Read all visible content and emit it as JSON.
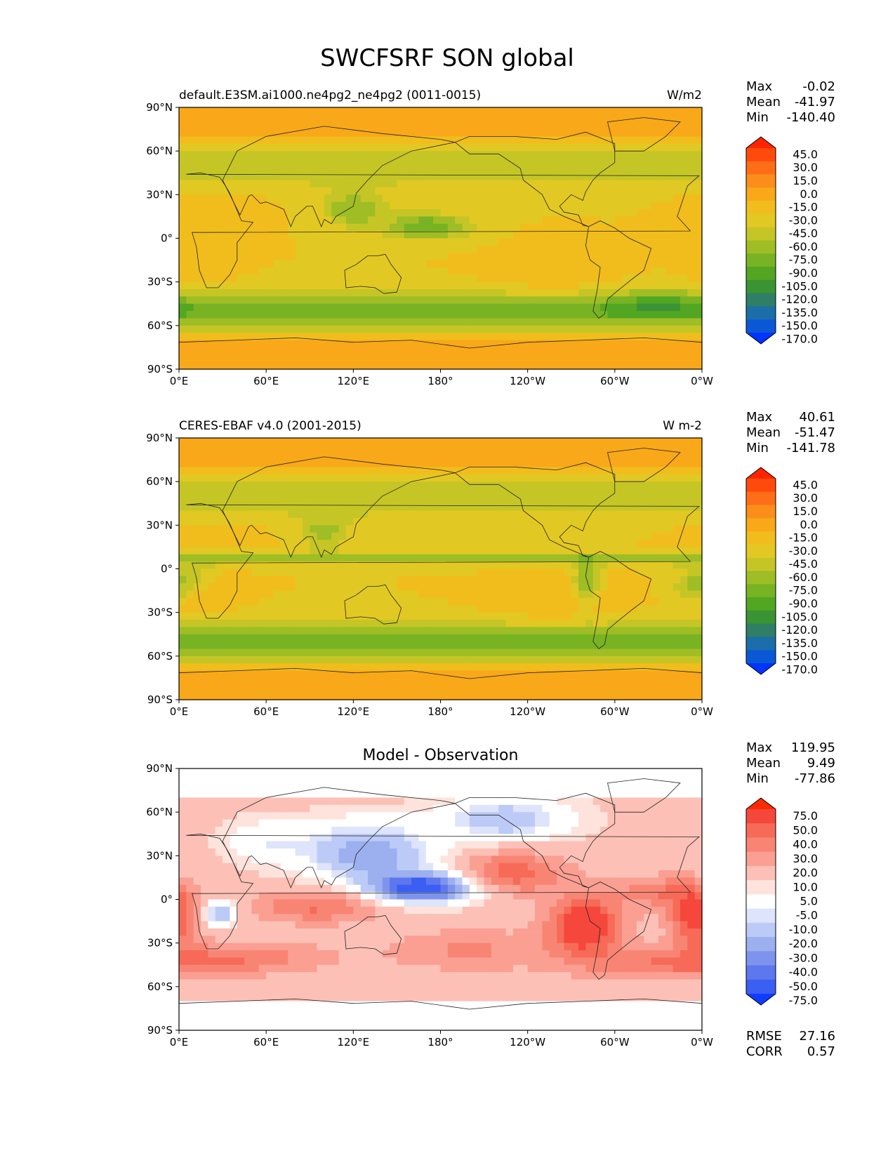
{
  "figure": {
    "title": "SWCFSRF SON global"
  },
  "panels": [
    {
      "id": "model",
      "title_left": "default.E3SM.ai1000.ne4pg2_ne4pg2 (0011-0015)",
      "title_center": "",
      "units": "W/m2",
      "stats": [
        {
          "label": "Max",
          "value": "-0.02"
        },
        {
          "label": "Mean",
          "value": "-41.97"
        },
        {
          "label": "Min",
          "value": "-140.40"
        }
      ],
      "colorbar": {
        "levels": [
          "45.0",
          "30.0",
          "15.0",
          "0.0",
          "-15.0",
          "-30.0",
          "-45.0",
          "-60.0",
          "-75.0",
          "-90.0",
          "-105.0",
          "-120.0",
          "-135.0",
          "-150.0",
          "-170.0"
        ],
        "colors": [
          "#ff2400",
          "#ff4a0c",
          "#ff6e16",
          "#fb8e1a",
          "#f8a818",
          "#f1bd1d",
          "#e2c823",
          "#c5c626",
          "#9fbd25",
          "#78b323",
          "#52a622",
          "#3b9433",
          "#2f7f67",
          "#1b6ea8",
          "#0b58d6",
          "#0034ff"
        ]
      },
      "field": "model"
    },
    {
      "id": "obs",
      "title_left": "CERES-EBAF v4.0 (2001-2015)",
      "title_center": "",
      "units": "W m-2",
      "stats": [
        {
          "label": "Max",
          "value": "40.61"
        },
        {
          "label": "Mean",
          "value": "-51.47"
        },
        {
          "label": "Min",
          "value": "-141.78"
        }
      ],
      "colorbar": {
        "levels": [
          "45.0",
          "30.0",
          "15.0",
          "0.0",
          "-15.0",
          "-30.0",
          "-45.0",
          "-60.0",
          "-75.0",
          "-90.0",
          "-105.0",
          "-120.0",
          "-135.0",
          "-150.0",
          "-170.0"
        ],
        "colors": [
          "#ff2400",
          "#ff4a0c",
          "#ff6e16",
          "#fb8e1a",
          "#f8a818",
          "#f1bd1d",
          "#e2c823",
          "#c5c626",
          "#9fbd25",
          "#78b323",
          "#52a622",
          "#3b9433",
          "#2f7f67",
          "#1b6ea8",
          "#0b58d6",
          "#0034ff"
        ]
      },
      "field": "obs"
    },
    {
      "id": "diff",
      "title_left": "",
      "title_center": "Model - Observation",
      "units": "",
      "stats": [
        {
          "label": "Max",
          "value": "119.95"
        },
        {
          "label": "Mean",
          "value": "9.49"
        },
        {
          "label": "Min",
          "value": "-77.86"
        }
      ],
      "extra_stats": [
        {
          "label": "RMSE",
          "value": "27.16"
        },
        {
          "label": "CORR",
          "value": "0.57"
        }
      ],
      "colorbar": {
        "levels": [
          "75.0",
          "50.0",
          "40.0",
          "30.0",
          "20.0",
          "10.0",
          "5.0",
          "-5.0",
          "-10.0",
          "-20.0",
          "-30.0",
          "-40.0",
          "-50.0",
          "-75.0"
        ],
        "colors": [
          "#ff2a00",
          "#f6473c",
          "#f76a58",
          "#f88574",
          "#fa9f92",
          "#fcc0b6",
          "#fde3dc",
          "#ffffff",
          "#dde4fb",
          "#bccaf7",
          "#9cafef",
          "#7e94ec",
          "#5d77ee",
          "#3b5ef3",
          "#0f3dff"
        ]
      },
      "field": "diff"
    }
  ],
  "axes": {
    "lat_ticks": [
      "90°N",
      "60°N",
      "30°N",
      "0°",
      "30°S",
      "60°S",
      "90°S"
    ],
    "lon_ticks": [
      "0°E",
      "60°E",
      "120°E",
      "180°",
      "120°W",
      "60°W",
      "0°W"
    ]
  },
  "chart_data": [
    {
      "type": "heatmap",
      "title": "default.E3SM.ai1000.ne4pg2_ne4pg2 (0011-0015)",
      "units": "W/m2",
      "x_range": [
        0,
        360
      ],
      "y_range": [
        -90,
        90
      ],
      "x_ticks": [
        "0°E",
        "60°E",
        "120°E",
        "180°",
        "120°W",
        "60°W",
        "0°W"
      ],
      "y_ticks": [
        "90°N",
        "60°N",
        "30°N",
        "0°",
        "30°S",
        "60°S",
        "90°S"
      ],
      "contour_levels": [
        -170,
        -150,
        -135,
        -120,
        -105,
        -90,
        -75,
        -60,
        -45,
        -30,
        -15,
        0,
        15,
        30,
        45
      ],
      "summary": {
        "max": -0.02,
        "mean": -41.97,
        "min": -140.4
      }
    },
    {
      "type": "heatmap",
      "title": "CERES-EBAF v4.0 (2001-2015)",
      "units": "W m-2",
      "x_range": [
        0,
        360
      ],
      "y_range": [
        -90,
        90
      ],
      "x_ticks": [
        "0°E",
        "60°E",
        "120°E",
        "180°",
        "120°W",
        "60°W",
        "0°W"
      ],
      "y_ticks": [
        "90°N",
        "60°N",
        "30°N",
        "0°",
        "30°S",
        "60°S",
        "90°S"
      ],
      "contour_levels": [
        -170,
        -150,
        -135,
        -120,
        -105,
        -90,
        -75,
        -60,
        -45,
        -30,
        -15,
        0,
        15,
        30,
        45
      ],
      "summary": {
        "max": 40.61,
        "mean": -51.47,
        "min": -141.78
      }
    },
    {
      "type": "heatmap",
      "title": "Model - Observation",
      "x_range": [
        0,
        360
      ],
      "y_range": [
        -90,
        90
      ],
      "x_ticks": [
        "0°E",
        "60°E",
        "120°E",
        "180°",
        "120°W",
        "60°W",
        "0°W"
      ],
      "y_ticks": [
        "90°N",
        "60°N",
        "30°N",
        "0°",
        "30°S",
        "60°S",
        "90°S"
      ],
      "contour_levels": [
        -75,
        -50,
        -40,
        -30,
        -20,
        -10,
        -5,
        5,
        10,
        20,
        30,
        40,
        50,
        75
      ],
      "summary": {
        "max": 119.95,
        "mean": 9.49,
        "min": -77.86,
        "rmse": 27.16,
        "corr": 0.57
      }
    }
  ]
}
